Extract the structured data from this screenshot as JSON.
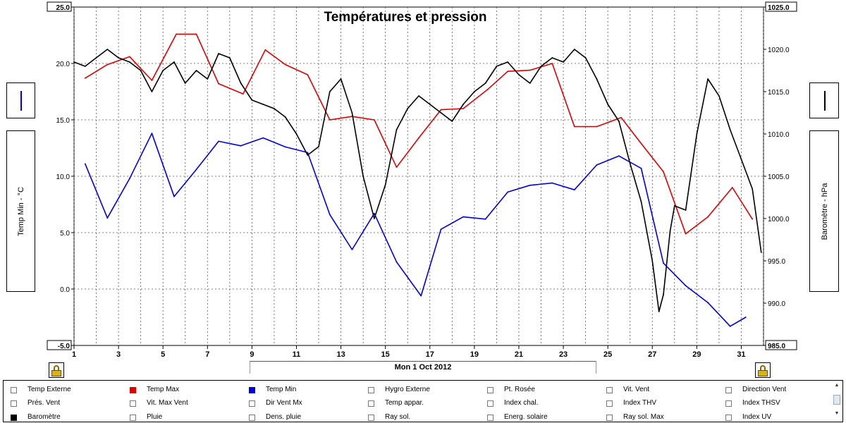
{
  "chart_data": {
    "type": "line",
    "title": "Températures et pression",
    "x_range": [
      1,
      32
    ],
    "x_ticks": [
      "1",
      "3",
      "5",
      "7",
      "9",
      "11",
      "13",
      "15",
      "17",
      "19",
      "21",
      "23",
      "25",
      "27",
      "29",
      "31"
    ],
    "x_axis_label": "Mon 1 Oct 2012",
    "left_axis": {
      "label": "Temp Min - °C",
      "range": [
        -5,
        25
      ],
      "ticks": [
        "-5.0",
        "0.0",
        "5.0",
        "10.0",
        "15.0",
        "20.0",
        "25.0"
      ]
    },
    "right_axis": {
      "label": "Baromètre - hPa",
      "range": [
        985,
        1025
      ],
      "ticks": [
        "985.0",
        "990.0",
        "995.0",
        "1000.0",
        "1005.0",
        "1010.0",
        "1015.0",
        "1020.0",
        "1025.0"
      ]
    },
    "grid": true,
    "series": [
      {
        "name": "Temp Max",
        "color": "#e00000",
        "axis": "left",
        "x": [
          1.5,
          2.5,
          3.5,
          4.5,
          5.6,
          6.5,
          7.5,
          8.6,
          9.6,
          10.5,
          11.5,
          12.5,
          13.5,
          14.5,
          15.5,
          16.5,
          17.5,
          18.5,
          19.6,
          20.5,
          21.5,
          22.5,
          23.5,
          24.5,
          25.6,
          26.5,
          27.5,
          28.5,
          29.5,
          30.6,
          31.5
        ],
        "y": [
          18.7,
          19.9,
          20.6,
          18.5,
          22.6,
          22.6,
          18.2,
          17.3,
          21.2,
          19.9,
          19.0,
          15.0,
          15.3,
          15.0,
          10.8,
          13.4,
          15.9,
          16.0,
          17.7,
          19.3,
          19.4,
          20.0,
          14.4,
          14.4,
          15.2,
          12.9,
          10.4,
          4.9,
          6.4,
          9.0,
          6.2
        ]
      },
      {
        "name": "Temp Min",
        "color": "#0000e0",
        "axis": "left",
        "x": [
          1.5,
          2.5,
          3.5,
          4.5,
          5.5,
          6.5,
          7.5,
          8.5,
          9.5,
          10.5,
          11.5,
          12.5,
          13.5,
          14.5,
          15.5,
          16.6,
          17.5,
          18.5,
          19.5,
          20.5,
          21.5,
          22.5,
          23.5,
          24.5,
          25.5,
          26.5,
          27.5,
          28.5,
          29.5,
          30.5,
          31.2
        ],
        "y": [
          11.1,
          6.3,
          9.8,
          13.8,
          8.2,
          10.6,
          13.1,
          12.7,
          13.4,
          12.6,
          12.1,
          6.6,
          3.5,
          6.7,
          2.4,
          -0.6,
          5.3,
          6.4,
          6.2,
          8.6,
          9.2,
          9.4,
          8.8,
          11.0,
          11.8,
          10.7,
          2.3,
          0.3,
          -1.2,
          -3.3,
          -2.5
        ]
      },
      {
        "name": "Baromètre",
        "color": "#000000",
        "axis": "right",
        "x": [
          1.0,
          1.5,
          2.0,
          2.5,
          3.0,
          3.5,
          4.0,
          4.5,
          5.0,
          5.5,
          6.0,
          6.5,
          7.0,
          7.5,
          8.0,
          8.5,
          9.0,
          9.5,
          10.0,
          10.5,
          11.0,
          11.5,
          12.0,
          12.5,
          13.0,
          13.5,
          14.0,
          14.5,
          15.0,
          15.5,
          16.0,
          16.5,
          17.0,
          17.5,
          18.0,
          18.5,
          19.0,
          19.5,
          20.0,
          20.5,
          21.0,
          21.5,
          22.0,
          22.5,
          23.0,
          23.5,
          24.0,
          24.5,
          25.0,
          25.5,
          26.0,
          26.5,
          27.0,
          27.3,
          27.5,
          27.8,
          28.0,
          28.5,
          29.0,
          29.5,
          30.0,
          30.5,
          31.0,
          31.5,
          31.9
        ],
        "y": [
          1018.5,
          1018.0,
          1019.0,
          1020.0,
          1019.0,
          1018.5,
          1017.5,
          1015.0,
          1017.5,
          1018.5,
          1016.0,
          1017.5,
          1016.5,
          1019.5,
          1019.0,
          1016.0,
          1014.0,
          1013.5,
          1013.0,
          1012.0,
          1010.0,
          1007.5,
          1008.5,
          1015.0,
          1016.5,
          1012.5,
          1005.0,
          1000.0,
          1004.0,
          1010.5,
          1013.0,
          1014.5,
          1013.5,
          1012.5,
          1011.5,
          1013.5,
          1015.0,
          1016.0,
          1018.0,
          1018.5,
          1017.0,
          1016.0,
          1018.0,
          1019.0,
          1018.5,
          1020.0,
          1019.0,
          1016.5,
          1013.5,
          1011.5,
          1006.5,
          1002.0,
          995.0,
          989.0,
          991.0,
          998.5,
          1001.5,
          1001.0,
          1010.0,
          1016.5,
          1014.5,
          1010.5,
          1007.0,
          1003.5,
          996.0
        ]
      }
    ]
  },
  "side_panels": {
    "left_label": "Temp Min - °C",
    "right_label": "Baromètre - hPa"
  },
  "legend_items": [
    {
      "label": "Temp Externe",
      "color": ""
    },
    {
      "label": "Temp Max",
      "color": "#e00000"
    },
    {
      "label": "Temp Min",
      "color": "#0000e0"
    },
    {
      "label": "Hygro Externe",
      "color": ""
    },
    {
      "label": "Pt. Rosée",
      "color": ""
    },
    {
      "label": "Vit. Vent",
      "color": ""
    },
    {
      "label": "Direction Vent",
      "color": ""
    },
    {
      "label": "Prés. Vent",
      "color": ""
    },
    {
      "label": "Vit. Max Vent",
      "color": ""
    },
    {
      "label": "Dir Vent Mx",
      "color": ""
    },
    {
      "label": "Temp appar.",
      "color": ""
    },
    {
      "label": "Index chal.",
      "color": ""
    },
    {
      "label": "Index THV",
      "color": ""
    },
    {
      "label": "Index THSV",
      "color": ""
    },
    {
      "label": "Baromètre",
      "color": "#000000"
    },
    {
      "label": "Pluie",
      "color": ""
    },
    {
      "label": "Dens. pluie",
      "color": ""
    },
    {
      "label": "Ray sol.",
      "color": ""
    },
    {
      "label": "Energ. solaire",
      "color": ""
    },
    {
      "label": "Ray sol. Max",
      "color": ""
    },
    {
      "label": "Index UV",
      "color": ""
    }
  ]
}
